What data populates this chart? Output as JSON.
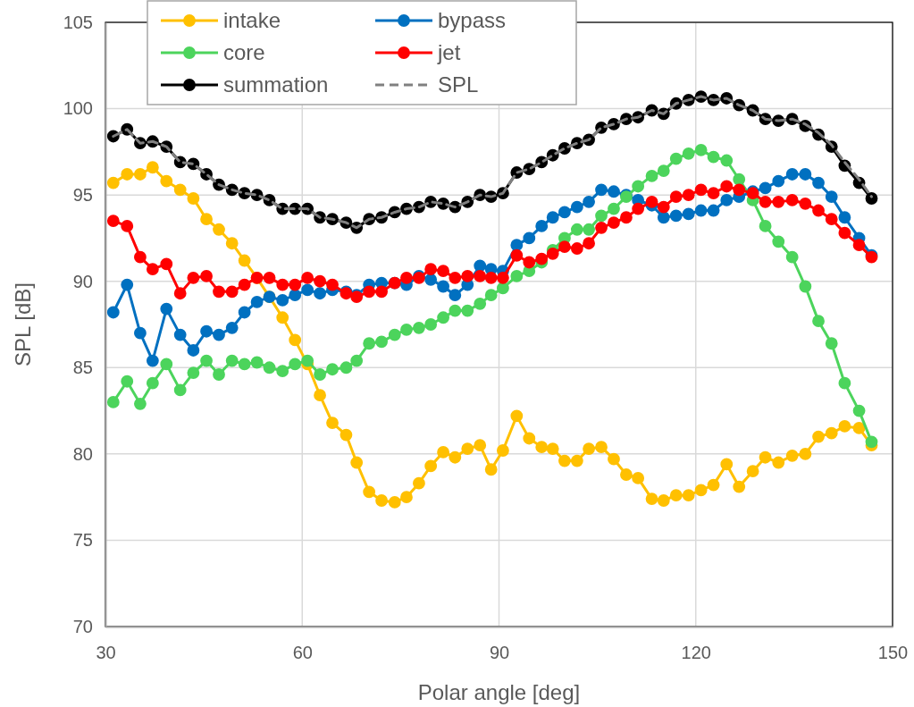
{
  "chart_data": {
    "type": "line",
    "xlabel": "Polar angle [deg]",
    "ylabel": "SPL [dB]",
    "x": [
      31.2,
      33.3,
      35.3,
      37.2,
      39.3,
      41.4,
      43.4,
      45.4,
      47.3,
      49.3,
      51.2,
      53.1,
      55.0,
      57.0,
      58.9,
      60.8,
      62.7,
      64.6,
      66.7,
      68.3,
      70.2,
      72.1,
      74.1,
      75.9,
      77.8,
      79.6,
      81.5,
      83.3,
      85.2,
      87.1,
      88.8,
      90.6,
      92.7,
      94.6,
      96.5,
      98.2,
      100.0,
      101.9,
      103.7,
      105.6,
      107.5,
      109.4,
      111.2,
      113.3,
      115.1,
      117.0,
      118.9,
      120.8,
      122.7,
      124.7,
      126.6,
      128.7,
      130.6,
      132.6,
      134.7,
      136.7,
      138.7,
      140.7,
      142.7,
      144.9,
      146.8
    ],
    "xlim": [
      30,
      150
    ],
    "xticks": [
      30,
      60,
      90,
      120,
      150
    ],
    "ylim": [
      70,
      105
    ],
    "yticks": [
      70,
      75,
      80,
      85,
      90,
      95,
      100,
      105
    ],
    "grid": true,
    "legend": "top left",
    "marker": "circle",
    "series": [
      {
        "name": "intake",
        "color": "#ffc000",
        "values": [
          95.7,
          96.2,
          96.2,
          96.6,
          95.8,
          95.3,
          94.8,
          93.6,
          93.0,
          92.2,
          91.2,
          90.2,
          89.1,
          87.9,
          86.6,
          85.2,
          83.4,
          81.8,
          81.1,
          79.5,
          77.8,
          77.3,
          77.2,
          77.5,
          78.3,
          79.3,
          80.1,
          79.8,
          80.3,
          80.5,
          79.1,
          80.2,
          82.2,
          80.9,
          80.4,
          80.3,
          79.6,
          79.6,
          80.3,
          80.4,
          79.7,
          78.8,
          78.6,
          77.4,
          77.3,
          77.6,
          77.6,
          77.9,
          78.2,
          79.4,
          78.1,
          79.0,
          79.8,
          79.5,
          79.9,
          80.0,
          81.0,
          81.2,
          81.6,
          81.5,
          80.5
        ]
      },
      {
        "name": "bypass",
        "color": "#0070c0",
        "values": [
          88.2,
          89.8,
          87.0,
          85.4,
          88.4,
          86.9,
          86.0,
          87.1,
          86.9,
          87.3,
          88.2,
          88.8,
          89.1,
          88.9,
          89.2,
          89.5,
          89.3,
          89.5,
          89.4,
          89.2,
          89.8,
          89.9,
          89.9,
          89.8,
          90.3,
          90.1,
          89.7,
          89.2,
          89.8,
          90.9,
          90.7,
          90.6,
          92.1,
          92.5,
          93.2,
          93.7,
          94.0,
          94.3,
          94.6,
          95.3,
          95.2,
          95.0,
          94.7,
          94.4,
          93.7,
          93.8,
          93.9,
          94.1,
          94.1,
          94.7,
          94.9,
          95.2,
          95.4,
          95.8,
          96.2,
          96.2,
          95.7,
          94.9,
          93.7,
          92.5,
          91.5
        ]
      },
      {
        "name": "core",
        "color": "#4cd45c",
        "values": [
          83.0,
          84.2,
          82.9,
          84.1,
          85.2,
          83.7,
          84.7,
          85.4,
          84.6,
          85.4,
          85.2,
          85.3,
          85.0,
          84.8,
          85.2,
          85.4,
          84.6,
          84.9,
          85.0,
          85.4,
          86.4,
          86.5,
          86.9,
          87.2,
          87.3,
          87.5,
          87.9,
          88.3,
          88.3,
          88.7,
          89.2,
          89.6,
          90.3,
          90.6,
          91.1,
          91.8,
          92.5,
          93.0,
          93.0,
          93.8,
          94.2,
          94.9,
          95.5,
          96.1,
          96.4,
          97.1,
          97.4,
          97.6,
          97.2,
          97.0,
          95.9,
          94.7,
          93.2,
          92.3,
          91.4,
          89.7,
          87.7,
          86.4,
          84.1,
          82.5,
          80.7
        ]
      },
      {
        "name": "jet",
        "color": "#ff0000",
        "values": [
          93.5,
          93.2,
          91.4,
          90.7,
          91.0,
          89.3,
          90.2,
          90.3,
          89.4,
          89.4,
          89.8,
          90.2,
          90.2,
          89.8,
          89.8,
          90.2,
          90.0,
          89.8,
          89.3,
          89.1,
          89.4,
          89.4,
          89.9,
          90.2,
          90.2,
          90.7,
          90.6,
          90.2,
          90.3,
          90.3,
          90.2,
          90.2,
          91.5,
          91.1,
          91.3,
          91.6,
          92.0,
          91.9,
          92.2,
          93.1,
          93.4,
          93.7,
          94.2,
          94.6,
          94.3,
          94.9,
          95.0,
          95.3,
          95.1,
          95.5,
          95.3,
          95.1,
          94.6,
          94.6,
          94.7,
          94.5,
          94.1,
          93.6,
          92.8,
          92.1,
          91.4
        ]
      },
      {
        "name": "summation",
        "color": "#000000",
        "values": [
          98.4,
          98.8,
          98.0,
          98.1,
          97.8,
          96.9,
          96.8,
          96.2,
          95.6,
          95.3,
          95.1,
          95.0,
          94.7,
          94.2,
          94.2,
          94.2,
          93.7,
          93.6,
          93.4,
          93.1,
          93.6,
          93.7,
          94.0,
          94.2,
          94.3,
          94.6,
          94.5,
          94.3,
          94.6,
          95.0,
          94.9,
          95.1,
          96.3,
          96.5,
          96.9,
          97.3,
          97.7,
          98.0,
          98.2,
          98.9,
          99.1,
          99.4,
          99.5,
          99.9,
          99.7,
          100.3,
          100.5,
          100.7,
          100.5,
          100.6,
          100.2,
          99.9,
          99.4,
          99.3,
          99.4,
          99.0,
          98.5,
          97.8,
          96.7,
          95.7,
          94.8
        ]
      },
      {
        "name": "SPL",
        "color": "#808080",
        "marker": "none",
        "line_style": "dashed",
        "values": [
          98.4,
          98.8,
          98.0,
          98.1,
          97.8,
          96.9,
          96.8,
          96.2,
          95.6,
          95.3,
          95.1,
          95.0,
          94.7,
          94.2,
          94.2,
          94.2,
          93.7,
          93.6,
          93.4,
          93.1,
          93.6,
          93.7,
          94.0,
          94.2,
          94.3,
          94.6,
          94.5,
          94.3,
          94.6,
          95.0,
          94.9,
          95.1,
          96.3,
          96.5,
          96.9,
          97.3,
          97.7,
          98.0,
          98.2,
          98.9,
          99.1,
          99.4,
          99.5,
          99.9,
          99.7,
          100.3,
          100.5,
          100.7,
          100.5,
          100.6,
          100.2,
          99.9,
          99.4,
          99.3,
          99.4,
          99.1,
          98.6,
          97.9,
          96.9,
          95.9,
          94.9
        ]
      }
    ]
  }
}
